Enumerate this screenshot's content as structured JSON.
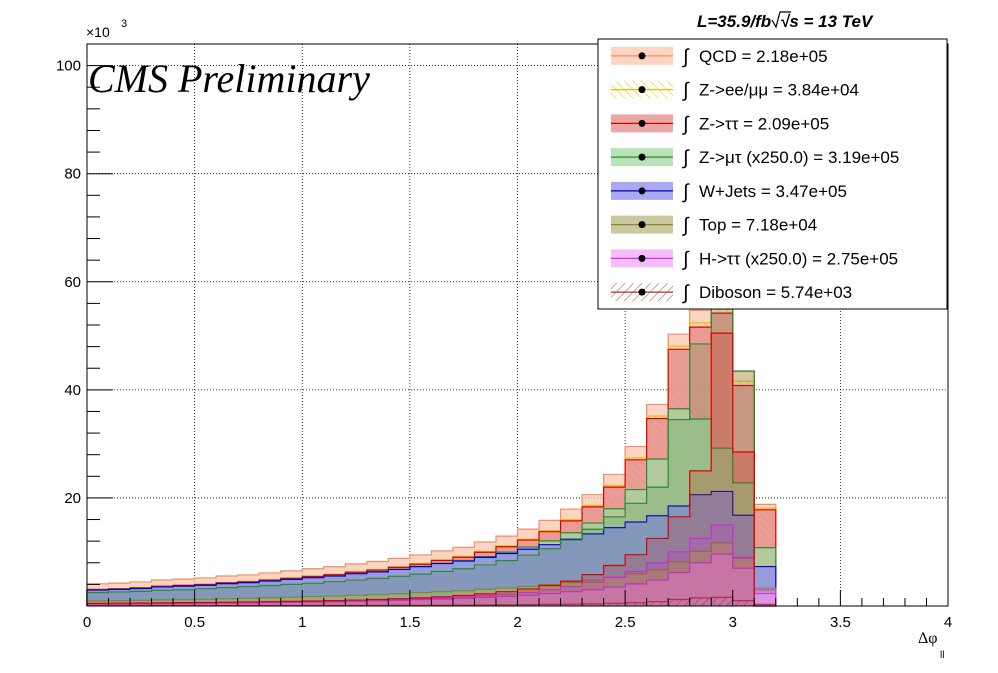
{
  "chart_data": {
    "type": "area",
    "plot_style": "stacked step histogram",
    "title": "",
    "annotations": {
      "cms": "CMS Preliminary",
      "lumi": "L=35.9/fb",
      "energy": "√s = 13 TeV",
      "y_multiplier": "×10",
      "y_multiplier_exp": "3"
    },
    "xlabel": "Δφ",
    "xlabel_sub": "ll",
    "ylabel": "",
    "xlim": [
      0,
      4
    ],
    "ylim": [
      0,
      104
    ],
    "y_units": "thousands",
    "xticks": [
      "0",
      "0.5",
      "1",
      "1.5",
      "2",
      "2.5",
      "3",
      "3.5",
      "4"
    ],
    "xtick_values": [
      0,
      0.5,
      1,
      1.5,
      2,
      2.5,
      3,
      3.5,
      4
    ],
    "yticks": [
      "20",
      "40",
      "60",
      "80",
      "100"
    ],
    "ytick_values": [
      20,
      40,
      60,
      80,
      100
    ],
    "grid": true,
    "legend_position": "top-right",
    "bin_width": 0.1,
    "bin_edges_range": [
      0,
      3.2
    ],
    "series": [
      {
        "name": "Diboson = 5.74e+03",
        "color": "#b03030",
        "fill": "hatch",
        "values": [
          0.05,
          0.05,
          0.05,
          0.06,
          0.06,
          0.06,
          0.07,
          0.07,
          0.08,
          0.08,
          0.09,
          0.09,
          0.1,
          0.11,
          0.12,
          0.13,
          0.15,
          0.17,
          0.2,
          0.22,
          0.25,
          0.3,
          0.35,
          0.4,
          0.5,
          0.6,
          0.8,
          1.2,
          1.5,
          1.6,
          1.0,
          0.3
        ]
      },
      {
        "name": "H->ττ (x250.0) = 2.75e+05",
        "color": "#cc33ff",
        "fill": "#f0a8f8",
        "values": [
          0.3,
          0.32,
          0.34,
          0.37,
          0.4,
          0.43,
          0.47,
          0.5,
          0.55,
          0.6,
          0.65,
          0.7,
          0.78,
          0.85,
          0.95,
          1.05,
          1.15,
          1.25,
          1.4,
          1.55,
          1.75,
          2.0,
          2.3,
          2.6,
          3.0,
          3.5,
          4.0,
          5.0,
          6.5,
          8.0,
          6.0,
          2.0
        ]
      },
      {
        "name": "Top = 7.18e+04",
        "color": "#8a8a33",
        "fill": "#b8b880",
        "values": [
          0.6,
          0.6,
          0.65,
          0.7,
          0.72,
          0.75,
          0.8,
          0.85,
          0.9,
          0.95,
          1.0,
          1.05,
          1.1,
          1.15,
          1.2,
          1.3,
          1.35,
          1.4,
          1.5,
          1.55,
          1.6,
          1.65,
          1.7,
          1.75,
          1.8,
          1.85,
          1.9,
          2.0,
          2.1,
          2.1,
          1.8,
          1.0
        ]
      },
      {
        "name": "W+Jets = 3.47e+05",
        "color": "#0000cc",
        "fill": "#8c8cee",
        "values": [
          2.0,
          2.1,
          2.2,
          2.4,
          2.5,
          2.6,
          2.8,
          2.9,
          3.1,
          3.3,
          3.5,
          3.7,
          4.0,
          4.2,
          4.5,
          4.8,
          5.2,
          5.5,
          5.9,
          6.4,
          6.9,
          7.4,
          8.0,
          8.6,
          9.2,
          9.6,
          10.0,
          10.3,
          10.5,
          9.5,
          8.0,
          4.0
        ]
      },
      {
        "name": "Z->μτ (x250.0) = 3.19e+05",
        "color": "#2d8a2d",
        "fill": "#a0d8a0",
        "values": [
          0.01,
          0.01,
          0.01,
          0.01,
          0.01,
          0.01,
          0.01,
          0.01,
          0.01,
          0.01,
          0.02,
          0.02,
          0.02,
          0.03,
          0.03,
          0.05,
          0.07,
          0.1,
          0.15,
          0.25,
          0.4,
          0.7,
          1.2,
          2.0,
          3.5,
          6.0,
          10.5,
          18.0,
          14.0,
          8.0,
          6.0,
          3.5
        ]
      },
      {
        "name": "Z->ττ = 2.09e+05",
        "color": "#dd0000",
        "fill": "#e38a8a",
        "values": [
          0.1,
          0.1,
          0.1,
          0.12,
          0.12,
          0.13,
          0.14,
          0.15,
          0.16,
          0.18,
          0.2,
          0.22,
          0.25,
          0.3,
          0.35,
          0.4,
          0.5,
          0.6,
          0.8,
          1.0,
          1.3,
          1.7,
          2.2,
          3.0,
          4.0,
          5.5,
          7.5,
          11.0,
          17.0,
          25.0,
          18.0,
          7.0
        ]
      },
      {
        "name": "Z->ee/μμ = 3.84e+04",
        "color": "#e6c000",
        "fill": "hatch-yellow",
        "values": [
          0.05,
          0.05,
          0.05,
          0.05,
          0.06,
          0.06,
          0.06,
          0.07,
          0.07,
          0.08,
          0.08,
          0.09,
          0.1,
          0.1,
          0.11,
          0.12,
          0.13,
          0.14,
          0.15,
          0.16,
          0.18,
          0.2,
          0.22,
          0.25,
          0.3,
          0.35,
          0.45,
          0.6,
          0.8,
          1.0,
          0.8,
          0.3
        ]
      },
      {
        "name": "QCD = 2.18e+05",
        "color": "#f08f6a",
        "fill": "#fbc6ad",
        "values": [
          1.0,
          1.0,
          1.05,
          1.1,
          1.1,
          1.15,
          1.2,
          1.2,
          1.25,
          1.3,
          1.35,
          1.4,
          1.45,
          1.5,
          1.55,
          1.6,
          1.65,
          1.7,
          1.75,
          1.8,
          1.85,
          1.9,
          1.95,
          2.0,
          2.05,
          2.1,
          2.15,
          2.2,
          2.3,
          2.3,
          1.8,
          0.7
        ]
      }
    ],
    "overlay_steps": [
      {
        "name": "Z->μτ (x250.0)",
        "color": "#2d8a2d",
        "values": [
          2.5,
          2.6,
          2.7,
          2.9,
          3.0,
          3.2,
          3.4,
          3.6,
          3.8,
          4.0,
          4.2,
          4.5,
          4.8,
          5.1,
          5.5,
          5.9,
          6.4,
          6.9,
          7.6,
          8.4,
          9.4,
          10.6,
          12.2,
          14.2,
          16.5,
          19.0,
          22.0,
          34.5,
          48.5,
          61.0,
          43.5,
          0
        ]
      },
      {
        "name": "H->ττ (x250.0)",
        "color": "#cc33ff",
        "values": [
          0.4,
          0.42,
          0.45,
          0.48,
          0.52,
          0.56,
          0.6,
          0.65,
          0.7,
          0.76,
          0.83,
          0.9,
          1.0,
          1.1,
          1.22,
          1.35,
          1.5,
          1.68,
          1.9,
          2.15,
          2.5,
          3.0,
          3.6,
          4.4,
          5.3,
          6.4,
          8.0,
          10.0,
          12.5,
          15.0,
          9.0,
          3.0
        ]
      },
      {
        "name": "Z->ττ",
        "color": "#dd0000",
        "values": [
          0.5,
          0.52,
          0.55,
          0.58,
          0.62,
          0.66,
          0.7,
          0.75,
          0.8,
          0.86,
          0.93,
          1.0,
          1.1,
          1.2,
          1.35,
          1.5,
          1.7,
          1.95,
          2.25,
          2.65,
          3.15,
          3.8,
          4.6,
          5.8,
          7.5,
          9.5,
          12.5,
          16.5,
          25.0,
          50.5,
          28.5,
          0
        ]
      }
    ],
    "legend": [
      {
        "label": "QCD = 2.18e+05",
        "color": "#f08f6a",
        "fill": "#fbc6ad"
      },
      {
        "label": "Z->ee/μμ = 3.84e+04",
        "color": "#e6c000",
        "fill": "hatch-yellow"
      },
      {
        "label": "Z->ττ = 2.09e+05",
        "color": "#dd0000",
        "fill": "#e38a8a"
      },
      {
        "label": "Z->μτ (x250.0) = 3.19e+05",
        "color": "#2d8a2d",
        "fill": "#a0d8a0"
      },
      {
        "label": "W+Jets = 3.47e+05",
        "color": "#0000cc",
        "fill": "#8c8cee"
      },
      {
        "label": "Top = 7.18e+04",
        "color": "#8a8a33",
        "fill": "#b8b880"
      },
      {
        "label": "H->ττ (x250.0) = 2.75e+05",
        "color": "#cc33ff",
        "fill": "#f0a8f8"
      },
      {
        "label": "Diboson = 5.74e+03",
        "color": "#b03030",
        "fill": "hatch"
      }
    ],
    "integral_symbol": "∫"
  }
}
